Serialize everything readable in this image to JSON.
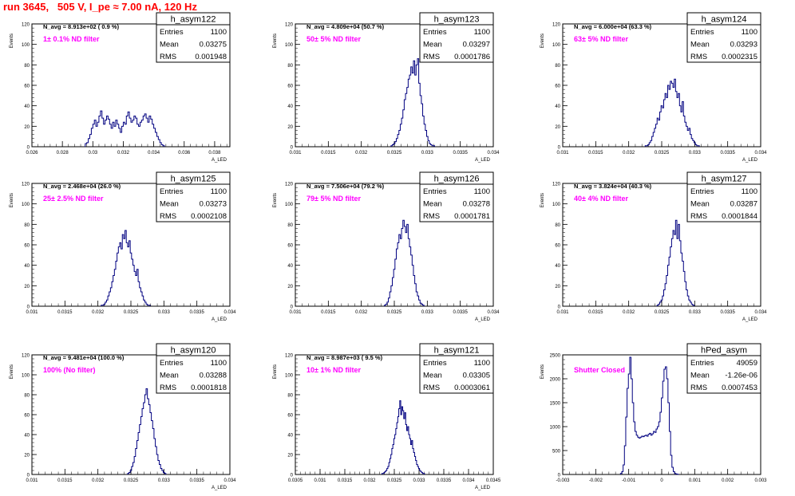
{
  "page_title": "run 3645,   505 V, I_pe ≈ 7.00 nA, 120 Hz",
  "chart_data": [
    {
      "type": "histogram",
      "title": "h_asym122",
      "nav": "N_avg = 8.913e+02 ( 0.9 %)",
      "filter": "1± 0.1% ND filter",
      "xlabel": "A_LED",
      "ylabel": "Events",
      "xlim": [
        0.026,
        0.039
      ],
      "ylim": [
        0,
        120
      ],
      "xticks": [
        "0.026",
        "0.028",
        "0.03",
        "0.032",
        "0.034",
        "0.036",
        "0.038"
      ],
      "xtick_values": [
        0.026,
        0.028,
        0.03,
        0.032,
        0.034,
        0.036,
        0.038
      ],
      "yticks": [
        "0",
        "20",
        "40",
        "60",
        "80",
        "100",
        "120"
      ],
      "ytick_values": [
        0,
        20,
        40,
        60,
        80,
        100,
        120
      ],
      "stats": {
        "entries": "1100",
        "mean": "0.03275",
        "rms": "0.001948"
      },
      "bins": {
        "start": 0.0285,
        "width": 0.0001,
        "counts": [
          1,
          1,
          2,
          3,
          4,
          5,
          7,
          9,
          10,
          11,
          12,
          13,
          12,
          11,
          10,
          9,
          8,
          7,
          6,
          5,
          4,
          3,
          3,
          2,
          2,
          1,
          1,
          0,
          0,
          0
        ]
      },
      "bins_note": "",
      "bins2": {
        "start": 0.0295,
        "width": 0.0001,
        "counts": [
          3,
          4,
          8,
          12,
          18,
          22,
          26,
          20,
          24,
          30,
          35,
          28,
          22,
          26,
          30,
          27,
          22,
          18,
          24,
          20,
          26,
          22,
          18,
          14,
          20,
          24,
          22,
          30,
          34,
          28,
          24,
          26,
          30,
          28,
          22,
          20,
          24,
          26,
          30,
          32,
          28,
          24,
          30,
          27,
          22,
          18,
          14,
          10,
          7,
          4,
          2,
          1
        ]
      }
    },
    {
      "type": "histogram",
      "title": "h_asym123",
      "nav": "N_avg = 4.809e+04 (50.7 %)",
      "filter": "50± 5% ND filter",
      "xlabel": "A_LED",
      "ylabel": "Events",
      "xlim": [
        0.031,
        0.034
      ],
      "ylim": [
        0,
        120
      ],
      "xticks": [
        "0.031",
        "0.0315",
        "0.032",
        "0.0325",
        "0.033",
        "0.0335",
        "0.034"
      ],
      "xtick_values": [
        0.031,
        0.0315,
        0.032,
        0.0325,
        0.033,
        0.0335,
        0.034
      ],
      "yticks": [
        "0",
        "20",
        "40",
        "60",
        "80",
        "100",
        "120"
      ],
      "ytick_values": [
        0,
        20,
        40,
        60,
        80,
        100,
        120
      ],
      "stats": {
        "entries": "1100",
        "mean": "0.03297",
        "rms": "0.0001786"
      },
      "bins2": {
        "start": 0.03245,
        "width": 2e-05,
        "counts": [
          1,
          2,
          3,
          5,
          8,
          12,
          16,
          22,
          28,
          36,
          46,
          52,
          58,
          66,
          70,
          78,
          72,
          84,
          70,
          80,
          86,
          62,
          50,
          42,
          30,
          22,
          16,
          10,
          6,
          3,
          2,
          1,
          1
        ]
      }
    },
    {
      "type": "histogram",
      "title": "h_asym124",
      "nav": "N_avg = 6.000e+04 (63.3 %)",
      "filter": "63± 5% ND filter",
      "xlabel": "A_LED",
      "ylabel": "Events",
      "xlim": [
        0.031,
        0.034
      ],
      "ylim": [
        0,
        120
      ],
      "xticks": [
        "0.031",
        "0.0315",
        "0.032",
        "0.0325",
        "0.033",
        "0.0335",
        "0.034"
      ],
      "xtick_values": [
        0.031,
        0.0315,
        0.032,
        0.0325,
        0.033,
        0.0335,
        0.034
      ],
      "yticks": [
        "0",
        "20",
        "40",
        "60",
        "80",
        "100",
        "120"
      ],
      "ytick_values": [
        0,
        20,
        40,
        60,
        80,
        100,
        120
      ],
      "stats": {
        "entries": "1100",
        "mean": "0.03293",
        "rms": "0.0002315"
      },
      "bins2": {
        "start": 0.03225,
        "width": 2e-05,
        "counts": [
          1,
          1,
          2,
          4,
          6,
          10,
          14,
          18,
          22,
          28,
          26,
          34,
          40,
          38,
          46,
          52,
          48,
          60,
          56,
          64,
          62,
          58,
          66,
          54,
          48,
          52,
          40,
          34,
          44,
          30,
          24,
          20,
          16,
          18,
          12,
          8,
          6,
          4,
          2,
          1,
          1
        ]
      }
    },
    {
      "type": "histogram",
      "title": "h_asym125",
      "nav": "N_avg = 2.468e+04 (26.0 %)",
      "filter": "25± 2.5% ND filter",
      "xlabel": "A_LED",
      "ylabel": "Events",
      "xlim": [
        0.031,
        0.034
      ],
      "ylim": [
        0,
        120
      ],
      "xticks": [
        "0.031",
        "0.0315",
        "0.032",
        "0.0325",
        "0.033",
        "0.0335",
        "0.034"
      ],
      "xtick_values": [
        0.031,
        0.0315,
        0.032,
        0.0325,
        0.033,
        0.0335,
        0.034
      ],
      "yticks": [
        "0",
        "20",
        "40",
        "60",
        "80",
        "100",
        "120"
      ],
      "ytick_values": [
        0,
        20,
        40,
        60,
        80,
        100,
        120
      ],
      "stats": {
        "entries": "1100",
        "mean": "0.03273",
        "rms": "0.0002108"
      },
      "bins2": {
        "start": 0.03205,
        "width": 2e-05,
        "counts": [
          1,
          1,
          2,
          4,
          6,
          10,
          14,
          18,
          24,
          30,
          36,
          44,
          52,
          58,
          62,
          56,
          70,
          66,
          74,
          62,
          58,
          64,
          52,
          46,
          40,
          34,
          30,
          36,
          24,
          18,
          14,
          10,
          6,
          4,
          2,
          1,
          1
        ]
      }
    },
    {
      "type": "histogram",
      "title": "h_asym126",
      "nav": "N_avg = 7.506e+04 (79.2 %)",
      "filter": "79± 5% ND filter",
      "xlabel": "A_LED",
      "ylabel": "Events",
      "xlim": [
        0.031,
        0.034
      ],
      "ylim": [
        0,
        120
      ],
      "xticks": [
        "0.031",
        "0.0315",
        "0.032",
        "0.0325",
        "0.033",
        "0.0335",
        "0.034"
      ],
      "xtick_values": [
        0.031,
        0.0315,
        0.032,
        0.0325,
        0.033,
        0.0335,
        0.034
      ],
      "yticks": [
        "0",
        "20",
        "40",
        "60",
        "80",
        "100",
        "120"
      ],
      "ytick_values": [
        0,
        20,
        40,
        60,
        80,
        100,
        120
      ],
      "stats": {
        "entries": "1100",
        "mean": "0.03278",
        "rms": "0.0001781"
      },
      "bins2": {
        "start": 0.03235,
        "width": 2e-05,
        "counts": [
          1,
          2,
          4,
          8,
          14,
          20,
          28,
          36,
          46,
          56,
          62,
          70,
          66,
          76,
          84,
          78,
          72,
          80,
          66,
          58,
          50,
          40,
          30,
          22,
          14,
          10,
          6,
          3,
          2,
          1
        ]
      }
    },
    {
      "type": "histogram",
      "title": "h_asym127",
      "nav": "N_avg = 3.824e+04 (40.3 %)",
      "filter": "40± 4% ND filter",
      "xlabel": "A_LED",
      "ylabel": "Events",
      "xlim": [
        0.031,
        0.034
      ],
      "ylim": [
        0,
        120
      ],
      "xticks": [
        "0.031",
        "0.0315",
        "0.032",
        "0.0325",
        "0.033",
        "0.0335",
        "0.034"
      ],
      "xtick_values": [
        0.031,
        0.0315,
        0.032,
        0.0325,
        0.033,
        0.0335,
        0.034
      ],
      "yticks": [
        "0",
        "20",
        "40",
        "60",
        "80",
        "100",
        "120"
      ],
      "ytick_values": [
        0,
        20,
        40,
        60,
        80,
        100,
        120
      ],
      "stats": {
        "entries": "1100",
        "mean": "0.03287",
        "rms": "0.0001844"
      },
      "bins2": {
        "start": 0.03243,
        "width": 2e-05,
        "counts": [
          1,
          2,
          4,
          6,
          10,
          16,
          22,
          30,
          40,
          48,
          58,
          66,
          74,
          70,
          84,
          66,
          80,
          64,
          52,
          44,
          34,
          24,
          16,
          10,
          6,
          4,
          2,
          1
        ]
      }
    },
    {
      "type": "histogram",
      "title": "h_asym120",
      "nav": "N_avg = 9.481e+04 (100.0 %)",
      "filter": "100% (No filter)",
      "xlabel": "A_LED",
      "ylabel": "Events",
      "xlim": [
        0.031,
        0.034
      ],
      "ylim": [
        0,
        120
      ],
      "xticks": [
        "0.031",
        "0.0315",
        "0.032",
        "0.0325",
        "0.033",
        "0.0335",
        "0.034"
      ],
      "xtick_values": [
        0.031,
        0.0315,
        0.032,
        0.0325,
        0.033,
        0.0335,
        0.034
      ],
      "yticks": [
        "0",
        "20",
        "40",
        "60",
        "80",
        "100",
        "120"
      ],
      "ytick_values": [
        0,
        20,
        40,
        60,
        80,
        100,
        120
      ],
      "stats": {
        "entries": "1100",
        "mean": "0.03288",
        "rms": "0.0001818"
      },
      "bins2": {
        "start": 0.03245,
        "width": 2e-05,
        "counts": [
          1,
          2,
          4,
          8,
          12,
          18,
          26,
          34,
          42,
          50,
          58,
          66,
          72,
          80,
          86,
          76,
          70,
          62,
          54,
          46,
          36,
          28,
          20,
          14,
          10,
          6,
          4,
          2,
          1
        ]
      }
    },
    {
      "type": "histogram",
      "title": "h_asym121",
      "nav": "N_avg = 8.987e+03 ( 9.5 %)",
      "filter": "10± 1% ND filter",
      "xlabel": "A_LED",
      "ylabel": "Events",
      "xlim": [
        0.0305,
        0.0345
      ],
      "ylim": [
        0,
        120
      ],
      "xticks": [
        "0.0305",
        "0.031",
        "0.0315",
        "0.032",
        "0.0325",
        "0.033",
        "0.0335",
        "0.034",
        "0.0345"
      ],
      "xtick_values": [
        0.0305,
        0.031,
        0.0315,
        0.032,
        0.0325,
        0.033,
        0.0335,
        0.034,
        0.0345
      ],
      "yticks": [
        "0",
        "20",
        "40",
        "60",
        "80",
        "100",
        "120"
      ],
      "ytick_values": [
        0,
        20,
        40,
        60,
        80,
        100,
        120
      ],
      "stats": {
        "entries": "1100",
        "mean": "0.03305",
        "rms": "0.0003061"
      },
      "bins2": {
        "start": 0.03225,
        "width": 2e-05,
        "counts": [
          1,
          1,
          2,
          3,
          4,
          6,
          8,
          12,
          16,
          20,
          26,
          30,
          36,
          40,
          46,
          52,
          58,
          66,
          74,
          60,
          68,
          64,
          56,
          62,
          50,
          44,
          48,
          40,
          36,
          30,
          34,
          26,
          22,
          18,
          14,
          10,
          8,
          6,
          4,
          3,
          2,
          1,
          1
        ]
      }
    },
    {
      "type": "histogram",
      "title": "hPed_asym",
      "nav": "",
      "filter": "Shutter Closed",
      "xlabel": "",
      "ylabel": "Events",
      "xlim": [
        -0.003,
        0.003
      ],
      "ylim": [
        0,
        2500
      ],
      "xticks": [
        "-0.003",
        "-0.002",
        "-0.001",
        "0",
        "0.001",
        "0.002",
        "0.003"
      ],
      "xtick_values": [
        -0.003,
        -0.002,
        -0.001,
        0,
        0.001,
        0.002,
        0.003
      ],
      "yticks": [
        "0",
        "500",
        "1000",
        "1500",
        "2000",
        "2500"
      ],
      "ytick_values": [
        0,
        500,
        1000,
        1500,
        2000,
        2500
      ],
      "stats": {
        "entries": "49059",
        "mean": "-1.26e-06",
        "rms": "0.0007453"
      },
      "bins2": {
        "start": -0.00125,
        "width": 4e-05,
        "counts": [
          20,
          60,
          200,
          600,
          1200,
          1800,
          2100,
          2450,
          2000,
          1500,
          1100,
          900,
          820,
          780,
          760,
          780,
          800,
          790,
          810,
          820,
          800,
          840,
          860,
          820,
          850,
          900,
          880,
          950,
          1000,
          1100,
          1300,
          1600,
          1950,
          2200,
          2250,
          2000,
          1500,
          900,
          400,
          150,
          60,
          20,
          10,
          5
        ]
      }
    }
  ]
}
